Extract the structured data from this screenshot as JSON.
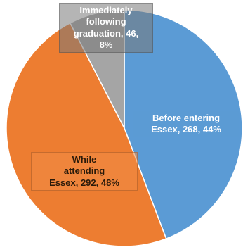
{
  "chart_data": {
    "type": "pie",
    "slices": [
      {
        "label": "Before entering Essex",
        "value": 268,
        "percent": "44%",
        "color": "#5B9BD5",
        "label_text": "Before entering\nEssex, 268, 44%"
      },
      {
        "label": "While attending Essex",
        "value": 292,
        "percent": "48%",
        "color": "#ED7D31",
        "label_text": "While\nattending\nEssex, 292, 48%"
      },
      {
        "label": "Immediately following graduation",
        "value": 46,
        "percent": "8%",
        "color": "#A5A5A5",
        "label_text": "Immediately\nfollowing\ngraduation, 46,\n8%"
      }
    ],
    "start_angle_deg": 0,
    "direction": "clockwise",
    "legend": "none"
  }
}
